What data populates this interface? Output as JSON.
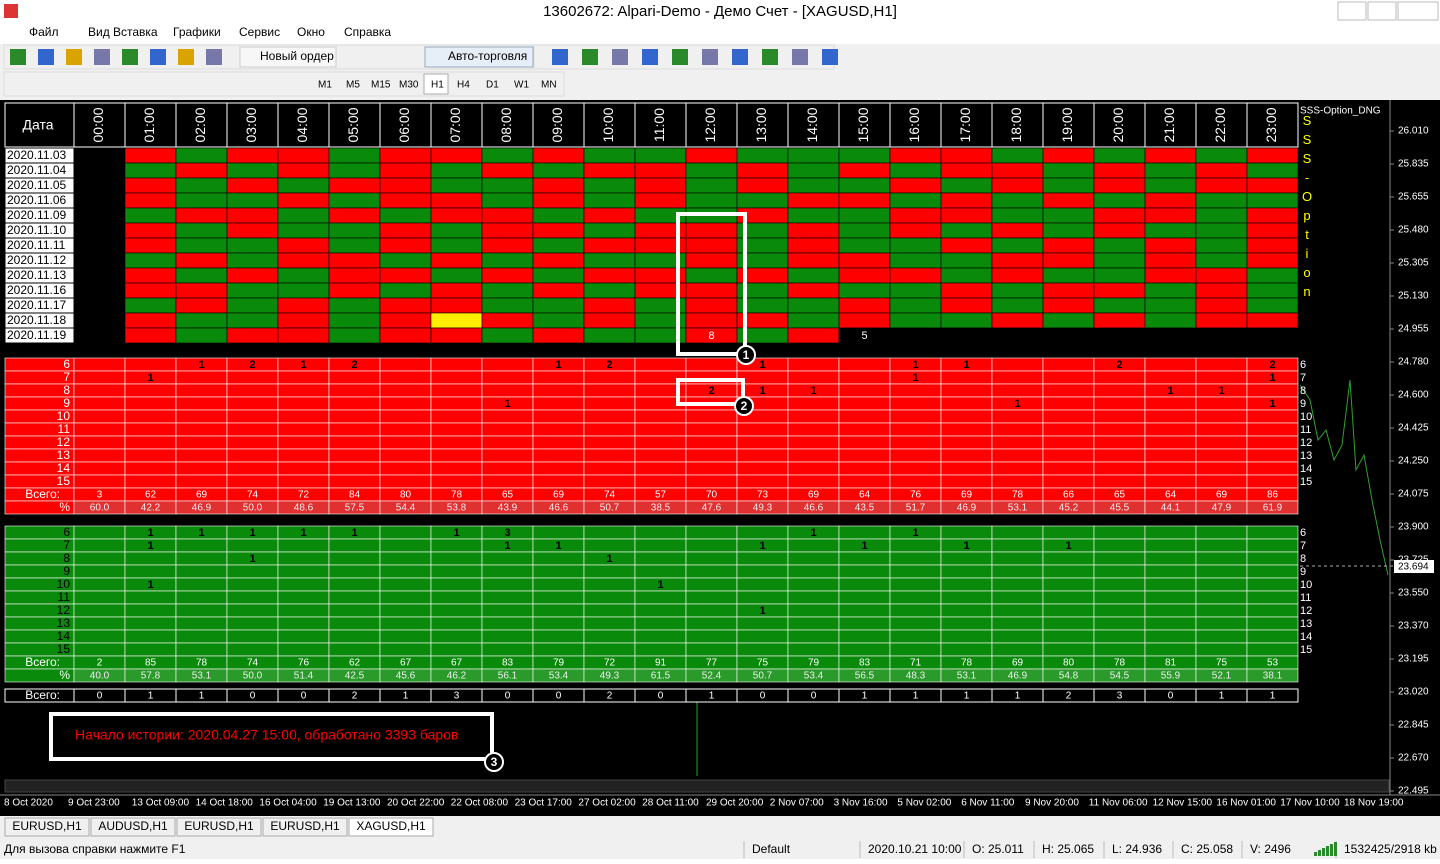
{
  "window": {
    "title": "13602672: Alpari-Demo - Демо Счет - [XAGUSD,H1]"
  },
  "menu": [
    "Файл",
    "Вид",
    "Вставка",
    "Графики",
    "Сервис",
    "Окно",
    "Справка"
  ],
  "toolbar": {
    "new_order": "Новый ордер",
    "auto_trading": "Авто-торговля"
  },
  "timeframes": [
    "M1",
    "M5",
    "M15",
    "M30",
    "H1",
    "H4",
    "D1",
    "W1",
    "MN"
  ],
  "indicator": {
    "name": "SSS-Option_DNG",
    "vertical": "SSS-Option"
  },
  "table": {
    "date_header": "Дата",
    "hours": [
      "00:00",
      "01:00",
      "02:00",
      "03:00",
      "04:00",
      "05:00",
      "06:00",
      "07:00",
      "08:00",
      "09:00",
      "10:00",
      "11:00",
      "12:00",
      "13:00",
      "14:00",
      "15:00",
      "16:00",
      "17:00",
      "18:00",
      "19:00",
      "20:00",
      "21:00",
      "22:00",
      "23:00"
    ],
    "colors": {
      "r": "#ff0000",
      "g": "#0a8a0a",
      "y": "#ffee00",
      "k": "#000000"
    },
    "rows": [
      {
        "date": "2020.11.03",
        "cells": "krgrrgrrgrggrgggrrgrgrgr"
      },
      {
        "date": "2020.11.04",
        "cells": "kgrgrgrgrgrrgrgrgrrgrgrg"
      },
      {
        "date": "2020.11.05",
        "cells": "krgrgrrggrgrgrggrgrgrgrr"
      },
      {
        "date": "2020.11.06",
        "cells": "krggrgrrgrgrggrrgrgrgrgg"
      },
      {
        "date": "2020.11.09",
        "cells": "kgrrgrgrrgrggrggrrggrrgr"
      },
      {
        "date": "2020.11.10",
        "cells": "krgrggrgrrgrrgrgrgrgrggr"
      },
      {
        "date": "2020.11.11",
        "cells": "krggrgrgrgrrrgrggrgrgrgr"
      },
      {
        "date": "2020.11.12",
        "cells": "kgrgrrgrgrggrgrrggrrgrgr"
      },
      {
        "date": "2020.11.13",
        "cells": "krgrgrrgrgrrgrgrrgrggrrg"
      },
      {
        "date": "2020.11.16",
        "cells": "krrggrgrgrgrrgrggrgrrgrg"
      },
      {
        "date": "2020.11.17",
        "cells": "kgrgrgrrggrgrggrgrgrggrg"
      },
      {
        "date": "2020.11.18",
        "cells": "krggrgryrgrgrrgrggrgrgrr"
      },
      {
        "date": "2020.11.19",
        "cells": "krgrrgrrgrggrgrkkkkkkkkk",
        "marks": [
          null,
          null,
          null,
          null,
          null,
          null,
          null,
          null,
          null,
          null,
          null,
          null,
          "8",
          null,
          null,
          "5",
          null,
          null,
          null,
          null,
          null,
          null,
          null,
          null
        ]
      }
    ]
  },
  "red_stats": {
    "rows": [
      {
        "label": "6",
        "counts": [
          null,
          null,
          1,
          2,
          1,
          2,
          null,
          null,
          null,
          1,
          2,
          null,
          null,
          1,
          null,
          null,
          1,
          1,
          null,
          null,
          2,
          null,
          null,
          2
        ]
      },
      {
        "label": "7",
        "counts": [
          null,
          1,
          null,
          null,
          null,
          null,
          null,
          null,
          null,
          null,
          null,
          null,
          null,
          null,
          null,
          null,
          1,
          null,
          null,
          null,
          null,
          null,
          null,
          1
        ]
      },
      {
        "label": "8",
        "counts": [
          null,
          null,
          null,
          null,
          null,
          null,
          null,
          null,
          null,
          null,
          null,
          null,
          2,
          1,
          1,
          null,
          null,
          null,
          null,
          null,
          null,
          1,
          1,
          null
        ]
      },
      {
        "label": "9",
        "counts": [
          null,
          null,
          null,
          null,
          null,
          null,
          null,
          null,
          1,
          null,
          null,
          null,
          null,
          null,
          null,
          null,
          null,
          null,
          1,
          null,
          null,
          null,
          null,
          1
        ]
      },
      {
        "label": "10",
        "counts": []
      },
      {
        "label": "11",
        "counts": []
      },
      {
        "label": "12",
        "counts": []
      },
      {
        "label": "13",
        "counts": []
      },
      {
        "label": "14",
        "counts": []
      },
      {
        "label": "15",
        "counts": []
      }
    ],
    "total_label": "Всего:",
    "totals": [
      3,
      62,
      69,
      74,
      72,
      84,
      80,
      78,
      65,
      69,
      74,
      57,
      70,
      73,
      69,
      64,
      76,
      69,
      78,
      66,
      65,
      64,
      69,
      86
    ],
    "pct_label": "%",
    "pcts": [
      "60.0",
      "42.2",
      "46.9",
      "50.0",
      "48.6",
      "57.5",
      "54.4",
      "53.8",
      "43.9",
      "46.6",
      "50.7",
      "38.5",
      "47.6",
      "49.3",
      "46.6",
      "43.5",
      "51.7",
      "46.9",
      "53.1",
      "45.2",
      "45.5",
      "44.1",
      "47.9",
      "61.9"
    ]
  },
  "green_stats": {
    "rows": [
      {
        "label": "6",
        "counts": [
          null,
          1,
          1,
          1,
          1,
          1,
          null,
          1,
          3,
          null,
          null,
          null,
          null,
          null,
          1,
          null,
          1,
          null,
          null,
          null,
          null,
          null,
          null,
          null
        ]
      },
      {
        "label": "7",
        "counts": [
          null,
          1,
          null,
          null,
          null,
          null,
          null,
          null,
          1,
          1,
          null,
          null,
          null,
          1,
          null,
          1,
          null,
          1,
          null,
          1,
          null,
          null,
          null,
          null
        ]
      },
      {
        "label": "8",
        "counts": [
          null,
          null,
          null,
          1,
          null,
          null,
          null,
          null,
          null,
          null,
          1,
          null,
          null,
          null,
          null,
          null,
          null,
          null,
          null,
          null,
          null,
          null,
          null,
          null
        ]
      },
      {
        "label": "9",
        "counts": []
      },
      {
        "label": "10",
        "counts": [
          null,
          1,
          null,
          null,
          null,
          null,
          null,
          null,
          null,
          null,
          null,
          1,
          null,
          null,
          null,
          null,
          null,
          null,
          null,
          null,
          null,
          null,
          null,
          null
        ]
      },
      {
        "label": "11",
        "counts": []
      },
      {
        "label": "12",
        "counts": [
          null,
          null,
          null,
          null,
          null,
          null,
          null,
          null,
          null,
          null,
          null,
          null,
          null,
          1,
          null,
          null,
          null,
          null,
          null,
          null,
          null,
          null,
          null,
          null
        ]
      },
      {
        "label": "13",
        "counts": []
      },
      {
        "label": "14",
        "counts": []
      },
      {
        "label": "15",
        "counts": []
      }
    ],
    "total_label": "Всего:",
    "totals": [
      2,
      85,
      78,
      74,
      76,
      62,
      67,
      67,
      83,
      79,
      72,
      91,
      77,
      75,
      79,
      83,
      71,
      78,
      69,
      80,
      78,
      81,
      75,
      53
    ],
    "pct_label": "%",
    "pcts": [
      "40.0",
      "57.8",
      "53.1",
      "50.0",
      "51.4",
      "42.5",
      "45.6",
      "46.2",
      "56.1",
      "53.4",
      "49.3",
      "61.5",
      "52.4",
      "50.7",
      "53.4",
      "56.5",
      "48.3",
      "53.1",
      "46.9",
      "54.8",
      "54.5",
      "55.9",
      "52.1",
      "38.1"
    ]
  },
  "bottom": {
    "total_label": "Всего:",
    "totals": [
      0,
      1,
      1,
      0,
      0,
      2,
      1,
      3,
      0,
      0,
      2,
      0,
      1,
      0,
      0,
      1,
      1,
      1,
      1,
      2,
      3,
      0,
      1,
      1
    ]
  },
  "price_axis": [
    "26.010",
    "25.835",
    "25.655",
    "25.480",
    "25.305",
    "25.130",
    "24.955",
    "24.780",
    "24.600",
    "24.425",
    "24.250",
    "24.075",
    "23.900",
    "23.725",
    "23.550",
    "23.370",
    "23.195",
    "23.020",
    "22.845",
    "22.670",
    "22.495"
  ],
  "current_price": "23.694",
  "time_axis": [
    "8 Oct 2020",
    "9 Oct 23:00",
    "13 Oct 09:00",
    "14 Oct 18:00",
    "16 Oct 04:00",
    "19 Oct 13:00",
    "20 Oct 22:00",
    "22 Oct 08:00",
    "23 Oct 17:00",
    "27 Oct 02:00",
    "28 Oct 11:00",
    "29 Oct 20:00",
    "2 Nov 07:00",
    "3 Nov 16:00",
    "5 Nov 02:00",
    "6 Nov 11:00",
    "9 Nov 20:00",
    "11 Nov 06:00",
    "12 Nov 15:00",
    "16 Nov 01:00",
    "17 Nov 10:00",
    "18 Nov 19:00"
  ],
  "message": "Начало истории: 2020.04.27 15:00, обработано 3393 баров",
  "callouts": [
    "1",
    "2",
    "3"
  ],
  "tabs": [
    "EURUSD,H1",
    "AUDUSD,H1",
    "EURUSD,H1",
    "EURUSD,H1",
    "XAGUSD,H1"
  ],
  "status": [
    "Для вызова справки нажмите F1",
    "Default",
    "2020.10.21 10:00",
    "O: 25.011",
    "H: 25.065",
    "L: 24.936",
    "C: 25.058",
    "V: 2496",
    "1532425/2918 kb"
  ]
}
